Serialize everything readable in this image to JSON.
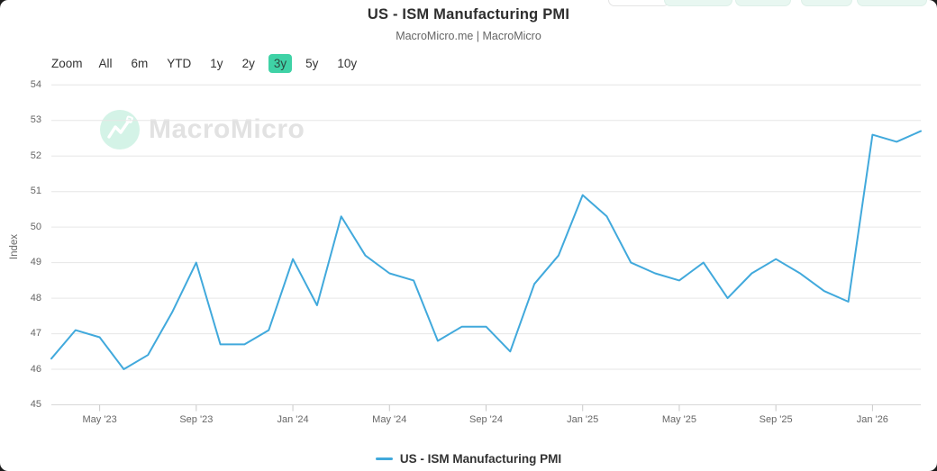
{
  "header": {
    "title": "US - ISM Manufacturing PMI",
    "subtitle": "MacroMicro.me | MacroMicro"
  },
  "watermark": {
    "text": "MacroMicro",
    "icon": "macromicro-logo",
    "circle_color": "#d4f3e7",
    "text_color": "#e2e2e2"
  },
  "range_selector": {
    "label": "Zoom",
    "selected": "3y",
    "buttons": [
      {
        "label": "All"
      },
      {
        "label": "6m"
      },
      {
        "label": "YTD"
      },
      {
        "label": "1y"
      },
      {
        "label": "2y"
      },
      {
        "label": "3y",
        "selected": true
      },
      {
        "label": "5y"
      },
      {
        "label": "10y"
      }
    ]
  },
  "y_axis": {
    "title": "Index",
    "ticks": [
      54,
      53,
      52,
      51,
      50,
      49,
      48,
      47,
      46,
      45
    ]
  },
  "x_axis": {
    "ticks": [
      {
        "label": "May '23",
        "month_index": 2
      },
      {
        "label": "Sep '23",
        "month_index": 6
      },
      {
        "label": "Jan '24",
        "month_index": 10
      },
      {
        "label": "May '24",
        "month_index": 14
      },
      {
        "label": "Sep '24",
        "month_index": 18
      },
      {
        "label": "Jan '25",
        "month_index": 22
      },
      {
        "label": "May '25",
        "month_index": 26
      },
      {
        "label": "Sep '25",
        "month_index": 30
      },
      {
        "label": "Jan '26",
        "month_index": 34
      }
    ]
  },
  "legend": {
    "label": "US - ISM Manufacturing PMI"
  },
  "colors": {
    "line": "#41a9dc",
    "grid": "#e6e6e6",
    "axis_line": "#d8d8d8",
    "tick": "#c9c9c9",
    "selected_button_bg": "#3fd2a6"
  },
  "chart_data": {
    "type": "line",
    "title": "US - ISM Manufacturing PMI",
    "subtitle": "MacroMicro.me | MacroMicro",
    "xlabel": "",
    "ylabel": "Index",
    "ylim": [
      45,
      54
    ],
    "grid": "horizontal",
    "legend_position": "bottom",
    "x": [
      "Mar 2023",
      "Apr 2023",
      "May 2023",
      "Jun 2023",
      "Jul 2023",
      "Aug 2023",
      "Sep 2023",
      "Oct 2023",
      "Nov 2023",
      "Dec 2023",
      "Jan 2024",
      "Feb 2024",
      "Mar 2024",
      "Apr 2024",
      "May 2024",
      "Jun 2024",
      "Jul 2024",
      "Aug 2024",
      "Sep 2024",
      "Oct 2024",
      "Nov 2024",
      "Dec 2024",
      "Jan 2025",
      "Feb 2025",
      "Mar 2025",
      "Apr 2025",
      "May 2025",
      "Jun 2025",
      "Jul 2025",
      "Aug 2025",
      "Sep 2025",
      "Oct 2025",
      "Nov 2025",
      "Dec 2025",
      "Jan 2026",
      "Feb 2026",
      "Mar 2026"
    ],
    "series": [
      {
        "name": "US - ISM Manufacturing PMI",
        "color": "#41a9dc",
        "values": [
          46.3,
          47.1,
          46.9,
          46.0,
          46.4,
          47.6,
          49.0,
          46.7,
          46.7,
          47.1,
          49.1,
          47.8,
          50.3,
          49.2,
          48.7,
          48.5,
          46.8,
          47.2,
          47.2,
          46.5,
          48.4,
          49.2,
          50.9,
          50.3,
          49.0,
          48.7,
          48.5,
          49.0,
          48.0,
          48.7,
          49.1,
          48.7,
          48.2,
          47.9,
          52.6,
          52.4,
          52.7
        ]
      }
    ]
  }
}
